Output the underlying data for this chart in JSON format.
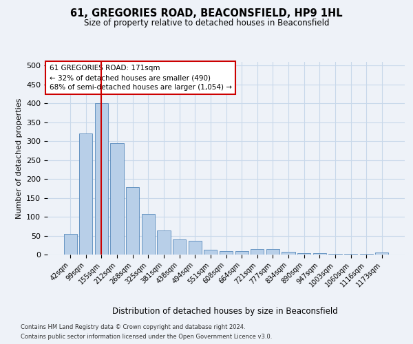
{
  "title": "61, GREGORIES ROAD, BEACONSFIELD, HP9 1HL",
  "subtitle": "Size of property relative to detached houses in Beaconsfield",
  "xlabel": "Distribution of detached houses by size in Beaconsfield",
  "ylabel": "Number of detached properties",
  "footer_line1": "Contains HM Land Registry data © Crown copyright and database right 2024.",
  "footer_line2": "Contains public sector information licensed under the Open Government Licence v3.0.",
  "categories": [
    "42sqm",
    "99sqm",
    "155sqm",
    "212sqm",
    "268sqm",
    "325sqm",
    "381sqm",
    "438sqm",
    "494sqm",
    "551sqm",
    "608sqm",
    "664sqm",
    "721sqm",
    "777sqm",
    "834sqm",
    "890sqm",
    "947sqm",
    "1003sqm",
    "1060sqm",
    "1116sqm",
    "1173sqm"
  ],
  "values": [
    55,
    320,
    400,
    295,
    178,
    107,
    63,
    40,
    37,
    12,
    10,
    10,
    15,
    15,
    8,
    4,
    4,
    1,
    1,
    1,
    5
  ],
  "bar_color": "#b8cfe8",
  "bar_edge_color": "#5588bb",
  "grid_color": "#c8d8ea",
  "background_color": "#eef2f8",
  "property_bin_index": 2,
  "red_line_color": "#cc0000",
  "annotation_line1": "61 GREGORIES ROAD: 171sqm",
  "annotation_line2": "← 32% of detached houses are smaller (490)",
  "annotation_line3": "68% of semi-detached houses are larger (1,054) →",
  "annotation_box_facecolor": "#ffffff",
  "annotation_box_edgecolor": "#cc0000",
  "ylim": [
    0,
    510
  ],
  "yticks": [
    0,
    50,
    100,
    150,
    200,
    250,
    300,
    350,
    400,
    450,
    500
  ]
}
